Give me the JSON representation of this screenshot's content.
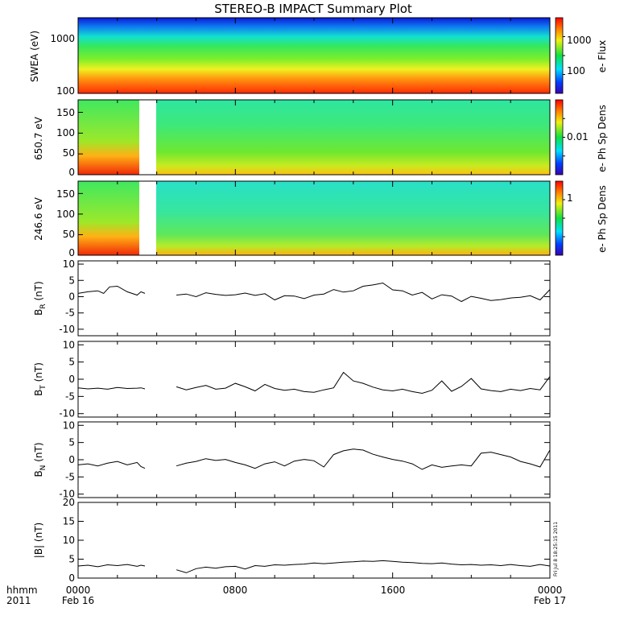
{
  "title": "STEREO-B IMPACT Summary Plot",
  "time_axis": {
    "row1_labels": [
      "0000",
      "0800",
      "1600",
      "0000"
    ],
    "row2_labels": [
      "Feb 16",
      "",
      "",
      "Feb 17"
    ],
    "corner_label_1": "hhmm",
    "corner_label_2": "2011",
    "range_hours": [
      0,
      24
    ]
  },
  "stamp": "Fri Jul  8 18:25:15 2011",
  "colors": {
    "line": "#000000",
    "frame": "#000000",
    "background": "#ffffff"
  },
  "chart_data": [
    {
      "type": "heatmap",
      "ylabel": "SWEA (eV)",
      "yscale": "log",
      "ylim": [
        100,
        2000
      ],
      "yticks": [
        "100",
        "1000"
      ],
      "colorbar_label": "e- Flux",
      "colorbar_ticks": [
        "100",
        "1000"
      ],
      "colorbar_scale": "log",
      "data_gaps": []
    },
    {
      "type": "heatmap",
      "ylabel": "650.7 eV",
      "ylim": [
        0,
        180
      ],
      "yticks": [
        "0",
        "50",
        "100",
        "150"
      ],
      "colorbar_label": "e- Ph Sp Dens",
      "colorbar_ticks": [
        "0.01"
      ],
      "data_gaps": [
        [
          3.4,
          4.8
        ]
      ]
    },
    {
      "type": "heatmap",
      "ylabel": "246.6 eV",
      "ylim": [
        0,
        180
      ],
      "yticks": [
        "0",
        "50",
        "100",
        "150"
      ],
      "colorbar_label": "e- Ph Sp Dens",
      "colorbar_ticks": [
        "1"
      ],
      "data_gaps": [
        [
          3.4,
          4.8
        ]
      ]
    },
    {
      "type": "line",
      "ylabel_main": "B",
      "ylabel_sub": "R",
      "ylabel_unit": " (nT)",
      "ylim": [
        -12,
        11
      ],
      "yticks": [
        "-10",
        "-5",
        "0",
        "5",
        "10"
      ],
      "x": [
        0,
        0.5,
        1,
        1.3,
        1.6,
        2,
        2.5,
        3,
        3.2,
        3.4,
        5,
        5.5,
        6,
        6.5,
        7,
        7.5,
        8,
        8.5,
        9,
        9.5,
        10,
        10.5,
        11,
        11.5,
        12,
        12.5,
        13,
        13.5,
        14,
        14.5,
        15,
        15.5,
        16,
        16.5,
        17,
        17.5,
        18,
        18.5,
        19,
        19.5,
        20,
        20.5,
        21,
        21.5,
        22,
        22.5,
        23,
        23.5,
        24
      ],
      "y": [
        1,
        1.5,
        1.8,
        1,
        3,
        3.2,
        1.5,
        0.5,
        1.5,
        1,
        0.5,
        0.8,
        0,
        1.2,
        0.7,
        0.4,
        0.6,
        1.1,
        0.4,
        0.9,
        -1,
        0.3,
        0.2,
        -0.6,
        0.5,
        0.8,
        2.2,
        1.4,
        1.8,
        3.2,
        3.6,
        4.2,
        2.1,
        1.8,
        0.5,
        1.3,
        -0.7,
        0.6,
        0.2,
        -1.5,
        0.1,
        -0.5,
        -1.2,
        -0.9,
        -0.4,
        -0.2,
        0.3,
        -1,
        2.2
      ]
    },
    {
      "type": "line",
      "ylabel_main": "B",
      "ylabel_sub": "T",
      "ylabel_unit": " (nT)",
      "ylim": [
        -11,
        11
      ],
      "yticks": [
        "-10",
        "-5",
        "0",
        "5",
        "10"
      ],
      "x": [
        0,
        0.5,
        1,
        1.5,
        2,
        2.5,
        3,
        3.2,
        3.4,
        5,
        5.5,
        6,
        6.5,
        7,
        7.5,
        8,
        8.5,
        9,
        9.5,
        10,
        10.5,
        11,
        11.5,
        12,
        12.5,
        13,
        13.5,
        14,
        14.5,
        15,
        15.5,
        16,
        16.5,
        17,
        17.5,
        18,
        18.5,
        19,
        19.5,
        20,
        20.5,
        21,
        21.5,
        22,
        22.5,
        23,
        23.5,
        24
      ],
      "y": [
        -2.5,
        -2.8,
        -2.6,
        -2.9,
        -2.4,
        -2.7,
        -2.6,
        -2.5,
        -2.8,
        -2.2,
        -3.1,
        -2.4,
        -1.8,
        -2.9,
        -2.6,
        -1.2,
        -2.2,
        -3.4,
        -1.5,
        -2.7,
        -3.2,
        -2.9,
        -3.6,
        -3.8,
        -3.1,
        -2.5,
        2,
        -0.5,
        -1.2,
        -2.3,
        -3.1,
        -3.4,
        -2.9,
        -3.6,
        -4.1,
        -3.2,
        -0.5,
        -3.5,
        -2.1,
        0.2,
        -2.8,
        -3.3,
        -3.6,
        -2.9,
        -3.3,
        -2.7,
        -3.1,
        0.8
      ]
    },
    {
      "type": "line",
      "ylabel_main": "B",
      "ylabel_sub": "N",
      "ylabel_unit": " (nT)",
      "ylim": [
        -11,
        11
      ],
      "yticks": [
        "-10",
        "-5",
        "0",
        "5",
        "10"
      ],
      "x": [
        0,
        0.5,
        1,
        1.5,
        2,
        2.5,
        3,
        3.2,
        3.4,
        5,
        5.5,
        6,
        6.5,
        7,
        7.5,
        8,
        8.5,
        9,
        9.5,
        10,
        10.5,
        11,
        11.5,
        12,
        12.5,
        13,
        13.5,
        14,
        14.5,
        15,
        15.5,
        16,
        16.5,
        17,
        17.5,
        18,
        18.5,
        19,
        19.5,
        20,
        20.5,
        21,
        21.5,
        22,
        22.5,
        23,
        23.5,
        24
      ],
      "y": [
        -1.5,
        -1.2,
        -1.8,
        -1,
        -0.5,
        -1.5,
        -0.8,
        -2,
        -2.5,
        -1.8,
        -1,
        -0.5,
        0.3,
        -0.2,
        0.1,
        -0.8,
        -1.5,
        -2.5,
        -1.2,
        -0.6,
        -1.8,
        -0.4,
        0.1,
        -0.3,
        -2.1,
        1.5,
        2.6,
        3.1,
        2.8,
        1.6,
        0.8,
        0.1,
        -0.4,
        -1.2,
        -2.8,
        -1.5,
        -2.2,
        -1.8,
        -1.5,
        -1.8,
        1.9,
        2.2,
        1.5,
        0.8,
        -0.5,
        -1.2,
        -2.1,
        2.8
      ]
    },
    {
      "type": "line",
      "ylabel": "|B| (nT)",
      "ylim": [
        0,
        20
      ],
      "yticks": [
        "0",
        "5",
        "10",
        "15",
        "20"
      ],
      "x": [
        0,
        0.5,
        1,
        1.5,
        2,
        2.5,
        3,
        3.2,
        3.4,
        5,
        5.5,
        6,
        6.5,
        7,
        7.5,
        8,
        8.5,
        9,
        9.5,
        10,
        10.5,
        11,
        11.5,
        12,
        12.5,
        13,
        13.5,
        14,
        14.5,
        15,
        15.5,
        16,
        16.5,
        17,
        17.5,
        18,
        18.5,
        19,
        19.5,
        20,
        20.5,
        21,
        21.5,
        22,
        22.5,
        23,
        23.5,
        24
      ],
      "y": [
        3.2,
        3.4,
        3,
        3.5,
        3.3,
        3.6,
        3.1,
        3.4,
        3.2,
        2.2,
        1.4,
        2.5,
        2.9,
        2.6,
        3,
        3.1,
        2.4,
        3.3,
        3.1,
        3.5,
        3.4,
        3.6,
        3.7,
        4,
        3.8,
        4,
        4.2,
        4.3,
        4.5,
        4.4,
        4.6,
        4.4,
        4.2,
        4.1,
        3.9,
        3.8,
        4,
        3.7,
        3.5,
        3.6,
        3.4,
        3.5,
        3.3,
        3.6,
        3.3,
        3.1,
        3.6,
        3.2
      ]
    }
  ]
}
